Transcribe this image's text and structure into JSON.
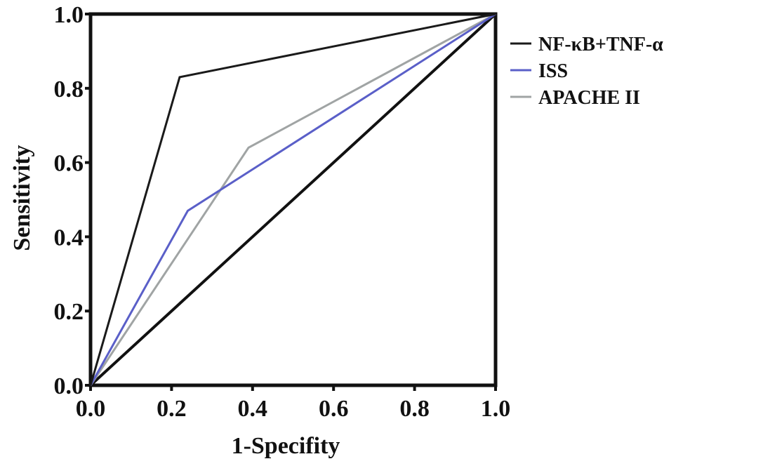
{
  "chart_data": {
    "type": "line",
    "title": "",
    "xlabel": "1-Specifity",
    "ylabel": "Sensitivity",
    "xlim": [
      0,
      1
    ],
    "ylim": [
      0,
      1
    ],
    "x_ticks": [
      "0.0",
      "0.2",
      "0.4",
      "0.6",
      "0.8",
      "1.0"
    ],
    "y_ticks": [
      "0.0",
      "0.2",
      "0.4",
      "0.6",
      "0.8",
      "1.0"
    ],
    "grid": false,
    "legend_position": "right",
    "series": [
      {
        "name": "NF-κB+TNF-α",
        "color": "#1a1a1a",
        "points": [
          [
            0,
            0
          ],
          [
            0.22,
            0.83
          ],
          [
            1,
            1
          ]
        ]
      },
      {
        "name": "ISS",
        "color": "#5a5fc8",
        "points": [
          [
            0,
            0
          ],
          [
            0.24,
            0.47
          ],
          [
            1,
            1
          ]
        ]
      },
      {
        "name": "APACHE II",
        "color": "#a0a4a4",
        "points": [
          [
            0,
            0
          ],
          [
            0.39,
            0.64
          ],
          [
            1,
            1
          ]
        ]
      }
    ],
    "reference_line": {
      "color": "#111111",
      "points": [
        [
          0,
          0
        ],
        [
          1,
          1
        ]
      ]
    }
  }
}
